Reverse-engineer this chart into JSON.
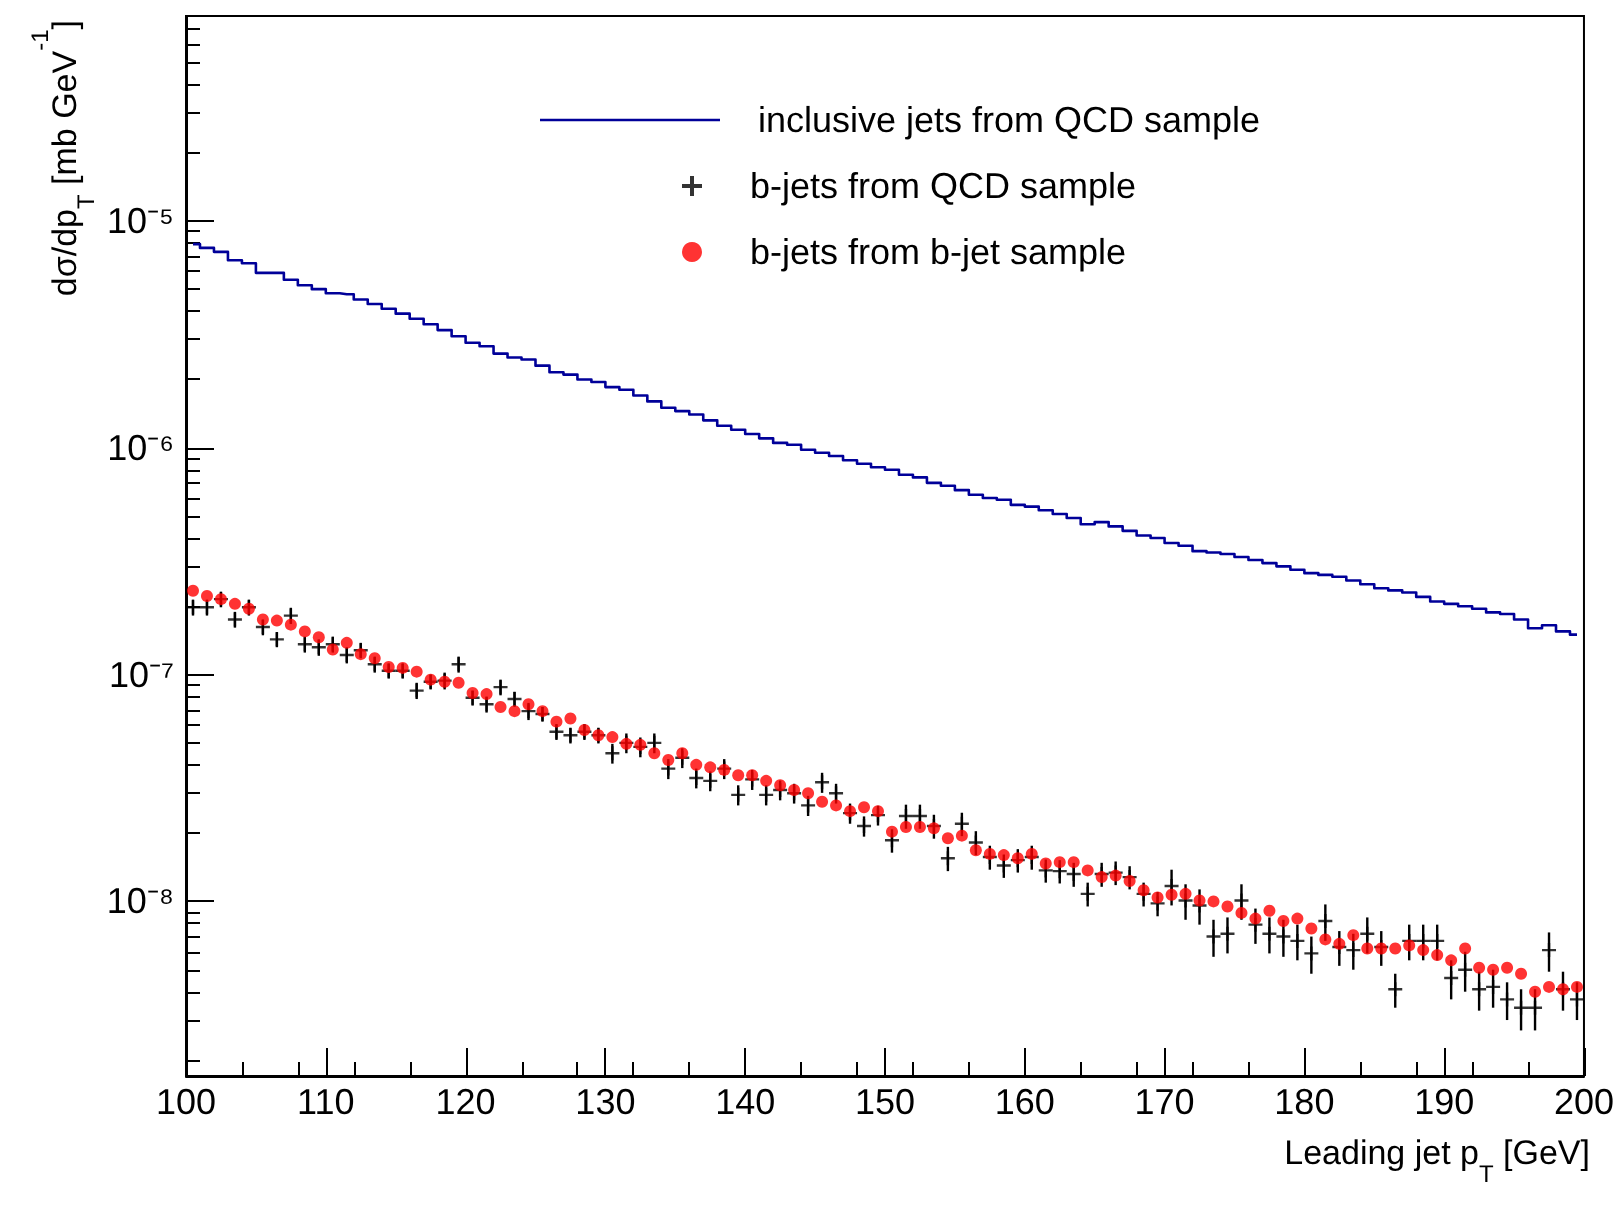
{
  "chart_data": {
    "type": "scatter",
    "xlabel": "Leading jet p$_{T}$ [GeV]",
    "ylabel": "dσ/dp$_{T}$ [mb GeV$^{-1}$]",
    "log": "y",
    "legend": "top right",
    "xlim": [
      100,
      200
    ],
    "xticks": [
      100,
      110,
      120,
      130,
      140,
      150,
      160,
      170,
      180,
      190,
      200
    ],
    "ylim": [
      1.7e-09,
      8e-05
    ],
    "yticks": [
      {
        "value": 1e-08,
        "label": "10⁻⁸"
      },
      {
        "value": 1e-07,
        "label": "10⁻⁷"
      },
      {
        "value": 1e-06,
        "label": "10⁻⁶"
      },
      {
        "value": 1e-05,
        "label": "10⁻⁵"
      }
    ],
    "x": [
      100.5,
      101.5,
      102.5,
      103.5,
      104.5,
      105.5,
      106.5,
      107.5,
      108.5,
      109.5,
      110.5,
      111.5,
      112.5,
      113.5,
      114.5,
      115.5,
      116.5,
      117.5,
      118.5,
      119.5,
      120.5,
      121.5,
      122.5,
      123.5,
      124.5,
      125.5,
      126.5,
      127.5,
      128.5,
      129.5,
      130.5,
      131.5,
      132.5,
      133.5,
      134.5,
      135.5,
      136.5,
      137.5,
      138.5,
      139.5,
      140.5,
      141.5,
      142.5,
      143.5,
      144.5,
      145.5,
      146.5,
      147.5,
      148.5,
      149.5,
      150.5,
      151.5,
      152.5,
      153.5,
      154.5,
      155.5,
      156.5,
      157.5,
      158.5,
      159.5,
      160.5,
      161.5,
      162.5,
      163.5,
      164.5,
      165.5,
      166.5,
      167.5,
      168.5,
      169.5,
      170.5,
      171.5,
      172.5,
      173.5,
      174.5,
      175.5,
      176.5,
      177.5,
      178.5,
      179.5,
      180.5,
      181.5,
      182.5,
      183.5,
      184.5,
      185.5,
      186.5,
      187.5,
      188.5,
      189.5,
      190.5,
      191.5,
      192.5,
      193.5,
      194.5,
      195.5,
      196.5,
      197.5,
      198.5,
      199.5
    ],
    "series": [
      {
        "name": "inclusive jets from QCD sample",
        "type": "step",
        "color": "#000099",
        "marker": "none",
        "values": [
          7.9e-06,
          7.6e-06,
          7.3e-06,
          6.7e-06,
          6.5e-06,
          5.9e-06,
          5.9e-06,
          5.5e-06,
          5.2e-06,
          5e-06,
          4.8e-06,
          4.75e-06,
          4.5e-06,
          4.3e-06,
          4.1e-06,
          3.9e-06,
          3.7e-06,
          3.5e-06,
          3.3e-06,
          3.1e-06,
          2.9e-06,
          2.8e-06,
          2.6e-06,
          2.5e-06,
          2.45e-06,
          2.3e-06,
          2.15e-06,
          2.1e-06,
          2e-06,
          1.95e-06,
          1.85e-06,
          1.8e-06,
          1.7e-06,
          1.6e-06,
          1.5e-06,
          1.45e-06,
          1.4e-06,
          1.32e-06,
          1.25e-06,
          1.2e-06,
          1.15e-06,
          1.1e-06,
          1.05e-06,
          1.03e-06,
          9.8e-07,
          9.5e-07,
          9.2e-07,
          8.8e-07,
          8.5e-07,
          8.2e-07,
          8e-07,
          7.6e-07,
          7.4e-07,
          7e-07,
          6.8e-07,
          6.5e-07,
          6.2e-07,
          6e-07,
          5.9e-07,
          5.6e-07,
          5.5e-07,
          5.3e-07,
          5.1e-07,
          4.9e-07,
          4.6e-07,
          4.7e-07,
          4.5e-07,
          4.3e-07,
          4.1e-07,
          4e-07,
          3.8e-07,
          3.7e-07,
          3.5e-07,
          3.45e-07,
          3.4e-07,
          3.3e-07,
          3.2e-07,
          3.1e-07,
          3e-07,
          2.9e-07,
          2.8e-07,
          2.75e-07,
          2.7e-07,
          2.6e-07,
          2.5e-07,
          2.4e-07,
          2.35e-07,
          2.3e-07,
          2.2e-07,
          2.1e-07,
          2.05e-07,
          2e-07,
          1.95e-07,
          1.88e-07,
          1.85e-07,
          1.75e-07,
          1.6e-07,
          1.65e-07,
          1.55e-07,
          1.5e-07
        ]
      },
      {
        "name": "b-jets from QCD sample",
        "color": "#000000",
        "marker": "cross",
        "values": [
          1.98e-07,
          1.98e-07,
          2.15e-07,
          1.75e-07,
          1.98e-07,
          1.62e-07,
          1.43e-07,
          1.82e-07,
          1.36e-07,
          1.32e-07,
          1.36e-07,
          1.22e-07,
          1.28e-07,
          1.11e-07,
          1.04e-07,
          1.04e-07,
          8.5e-08,
          9.3e-08,
          9.4e-08,
          1.11e-07,
          7.9e-08,
          7.4e-08,
          8.8e-08,
          7.8e-08,
          6.9e-08,
          6.7e-08,
          5.6e-08,
          5.4e-08,
          5.6e-08,
          5.4e-08,
          4.5e-08,
          5e-08,
          4.8e-08,
          5e-08,
          3.85e-08,
          4.3e-08,
          3.5e-08,
          3.4e-08,
          3.85e-08,
          2.95e-08,
          3.45e-08,
          2.95e-08,
          3.1e-08,
          3e-08,
          2.65e-08,
          3.35e-08,
          3e-08,
          2.45e-08,
          2.15e-08,
          2.4e-08,
          1.86e-08,
          2.38e-08,
          2.38e-08,
          2.15e-08,
          1.55e-08,
          2.2e-08,
          1.82e-08,
          1.57e-08,
          1.44e-08,
          1.52e-08,
          1.57e-08,
          1.37e-08,
          1.36e-08,
          1.32e-08,
          1.08e-08,
          1.32e-08,
          1.34e-08,
          1.28e-08,
          1.08e-08,
          9.8e-09,
          1.17e-08,
          1.01e-08,
          9.6e-09,
          7e-09,
          7.2e-09,
          1.01e-08,
          7.9e-09,
          7.2e-09,
          7e-09,
          6.7e-09,
          5.9e-09,
          8.2e-09,
          6.3e-09,
          6.1e-09,
          7.2e-09,
          6.3e-09,
          4.1e-09,
          6.7e-09,
          6.7e-09,
          6.7e-09,
          4.6e-09,
          5e-09,
          4.1e-09,
          4.2e-09,
          3.7e-09,
          3.4e-09,
          3.4e-09,
          6.1e-09,
          4.1e-09,
          3.7e-09
        ],
        "errors": [
          1.6e-08,
          1.6e-08,
          1.7e-08,
          1.4e-08,
          1.6e-08,
          1.3e-08,
          1.1e-08,
          1.5e-08,
          1.1e-08,
          1.1e-08,
          1.1e-08,
          1e-08,
          1e-08,
          9e-09,
          8e-09,
          8e-09,
          7e-09,
          7e-09,
          8e-09,
          9e-09,
          6e-09,
          6e-09,
          7e-09,
          6e-09,
          6e-09,
          5e-09,
          4.5e-09,
          4.3e-09,
          4.5e-09,
          4.3e-09,
          4.5e-09,
          5e-09,
          4.8e-09,
          5e-09,
          3.9e-09,
          4.3e-09,
          3.5e-09,
          3.4e-09,
          3.9e-09,
          3e-09,
          3.5e-09,
          3e-09,
          3.1e-09,
          3e-09,
          2.7e-09,
          3.4e-09,
          3e-09,
          2.5e-09,
          2.2e-09,
          2.4e-09,
          2.2e-09,
          2.9e-09,
          2.9e-09,
          2.6e-09,
          1.9e-09,
          2.6e-09,
          2.2e-09,
          1.9e-09,
          1.7e-09,
          1.8e-09,
          1.9e-09,
          1.6e-09,
          1.6e-09,
          1.6e-09,
          1.3e-09,
          1.6e-09,
          1.6e-09,
          1.5e-09,
          1.3e-09,
          1.2e-09,
          2.1e-09,
          1.8e-09,
          1.7e-09,
          1.3e-09,
          1.3e-09,
          1.8e-09,
          1.4e-09,
          1.3e-09,
          1.3e-09,
          1.2e-09,
          1.1e-09,
          1.5e-09,
          1.1e-09,
          1.1e-09,
          1.3e-09,
          1.1e-09,
          7e-10,
          1.2e-09,
          1.2e-09,
          1.2e-09,
          9e-10,
          1e-09,
          8e-10,
          8e-10,
          7e-10,
          7e-10,
          7e-10,
          1.2e-09,
          8e-10,
          7e-10
        ]
      },
      {
        "name": "b-jets from b-jet sample",
        "color": "#ff0000",
        "marker": "circle",
        "values": [
          2.34e-07,
          2.22e-07,
          2.15e-07,
          2.05e-07,
          1.95e-07,
          1.75e-07,
          1.73e-07,
          1.66e-07,
          1.55e-07,
          1.46e-07,
          1.29e-07,
          1.38e-07,
          1.23e-07,
          1.18e-07,
          1.08e-07,
          1.07e-07,
          1.03e-07,
          9.5e-08,
          9.3e-08,
          9.2e-08,
          8.3e-08,
          8.2e-08,
          7.2e-08,
          6.9e-08,
          7.4e-08,
          6.9e-08,
          6.2e-08,
          6.4e-08,
          5.7e-08,
          5.4e-08,
          5.3e-08,
          4.95e-08,
          4.9e-08,
          4.5e-08,
          4.2e-08,
          4.5e-08,
          4e-08,
          3.9e-08,
          3.8e-08,
          3.6e-08,
          3.6e-08,
          3.4e-08,
          3.25e-08,
          3.1e-08,
          3e-08,
          2.75e-08,
          2.65e-08,
          2.5e-08,
          2.6e-08,
          2.5e-08,
          2.03e-08,
          2.13e-08,
          2.13e-08,
          2.1e-08,
          1.9e-08,
          1.95e-08,
          1.68e-08,
          1.62e-08,
          1.6e-08,
          1.55e-08,
          1.62e-08,
          1.47e-08,
          1.49e-08,
          1.49e-08,
          1.37e-08,
          1.28e-08,
          1.3e-08,
          1.23e-08,
          1.12e-08,
          1.04e-08,
          1.07e-08,
          1.08e-08,
          1.01e-08,
          1e-08,
          9.5e-09,
          8.9e-09,
          8.4e-09,
          9.1e-09,
          8.2e-09,
          8.4e-09,
          7.6e-09,
          6.8e-09,
          6.5e-09,
          7.1e-09,
          6.2e-09,
          6.2e-09,
          6.2e-09,
          6.4e-09,
          6.1e-09,
          5.8e-09,
          5.5e-09,
          6.2e-09,
          5.1e-09,
          5e-09,
          5.1e-09,
          4.8e-09,
          4e-09,
          4.2e-09,
          4.1e-09,
          4.2e-09
        ]
      }
    ]
  }
}
